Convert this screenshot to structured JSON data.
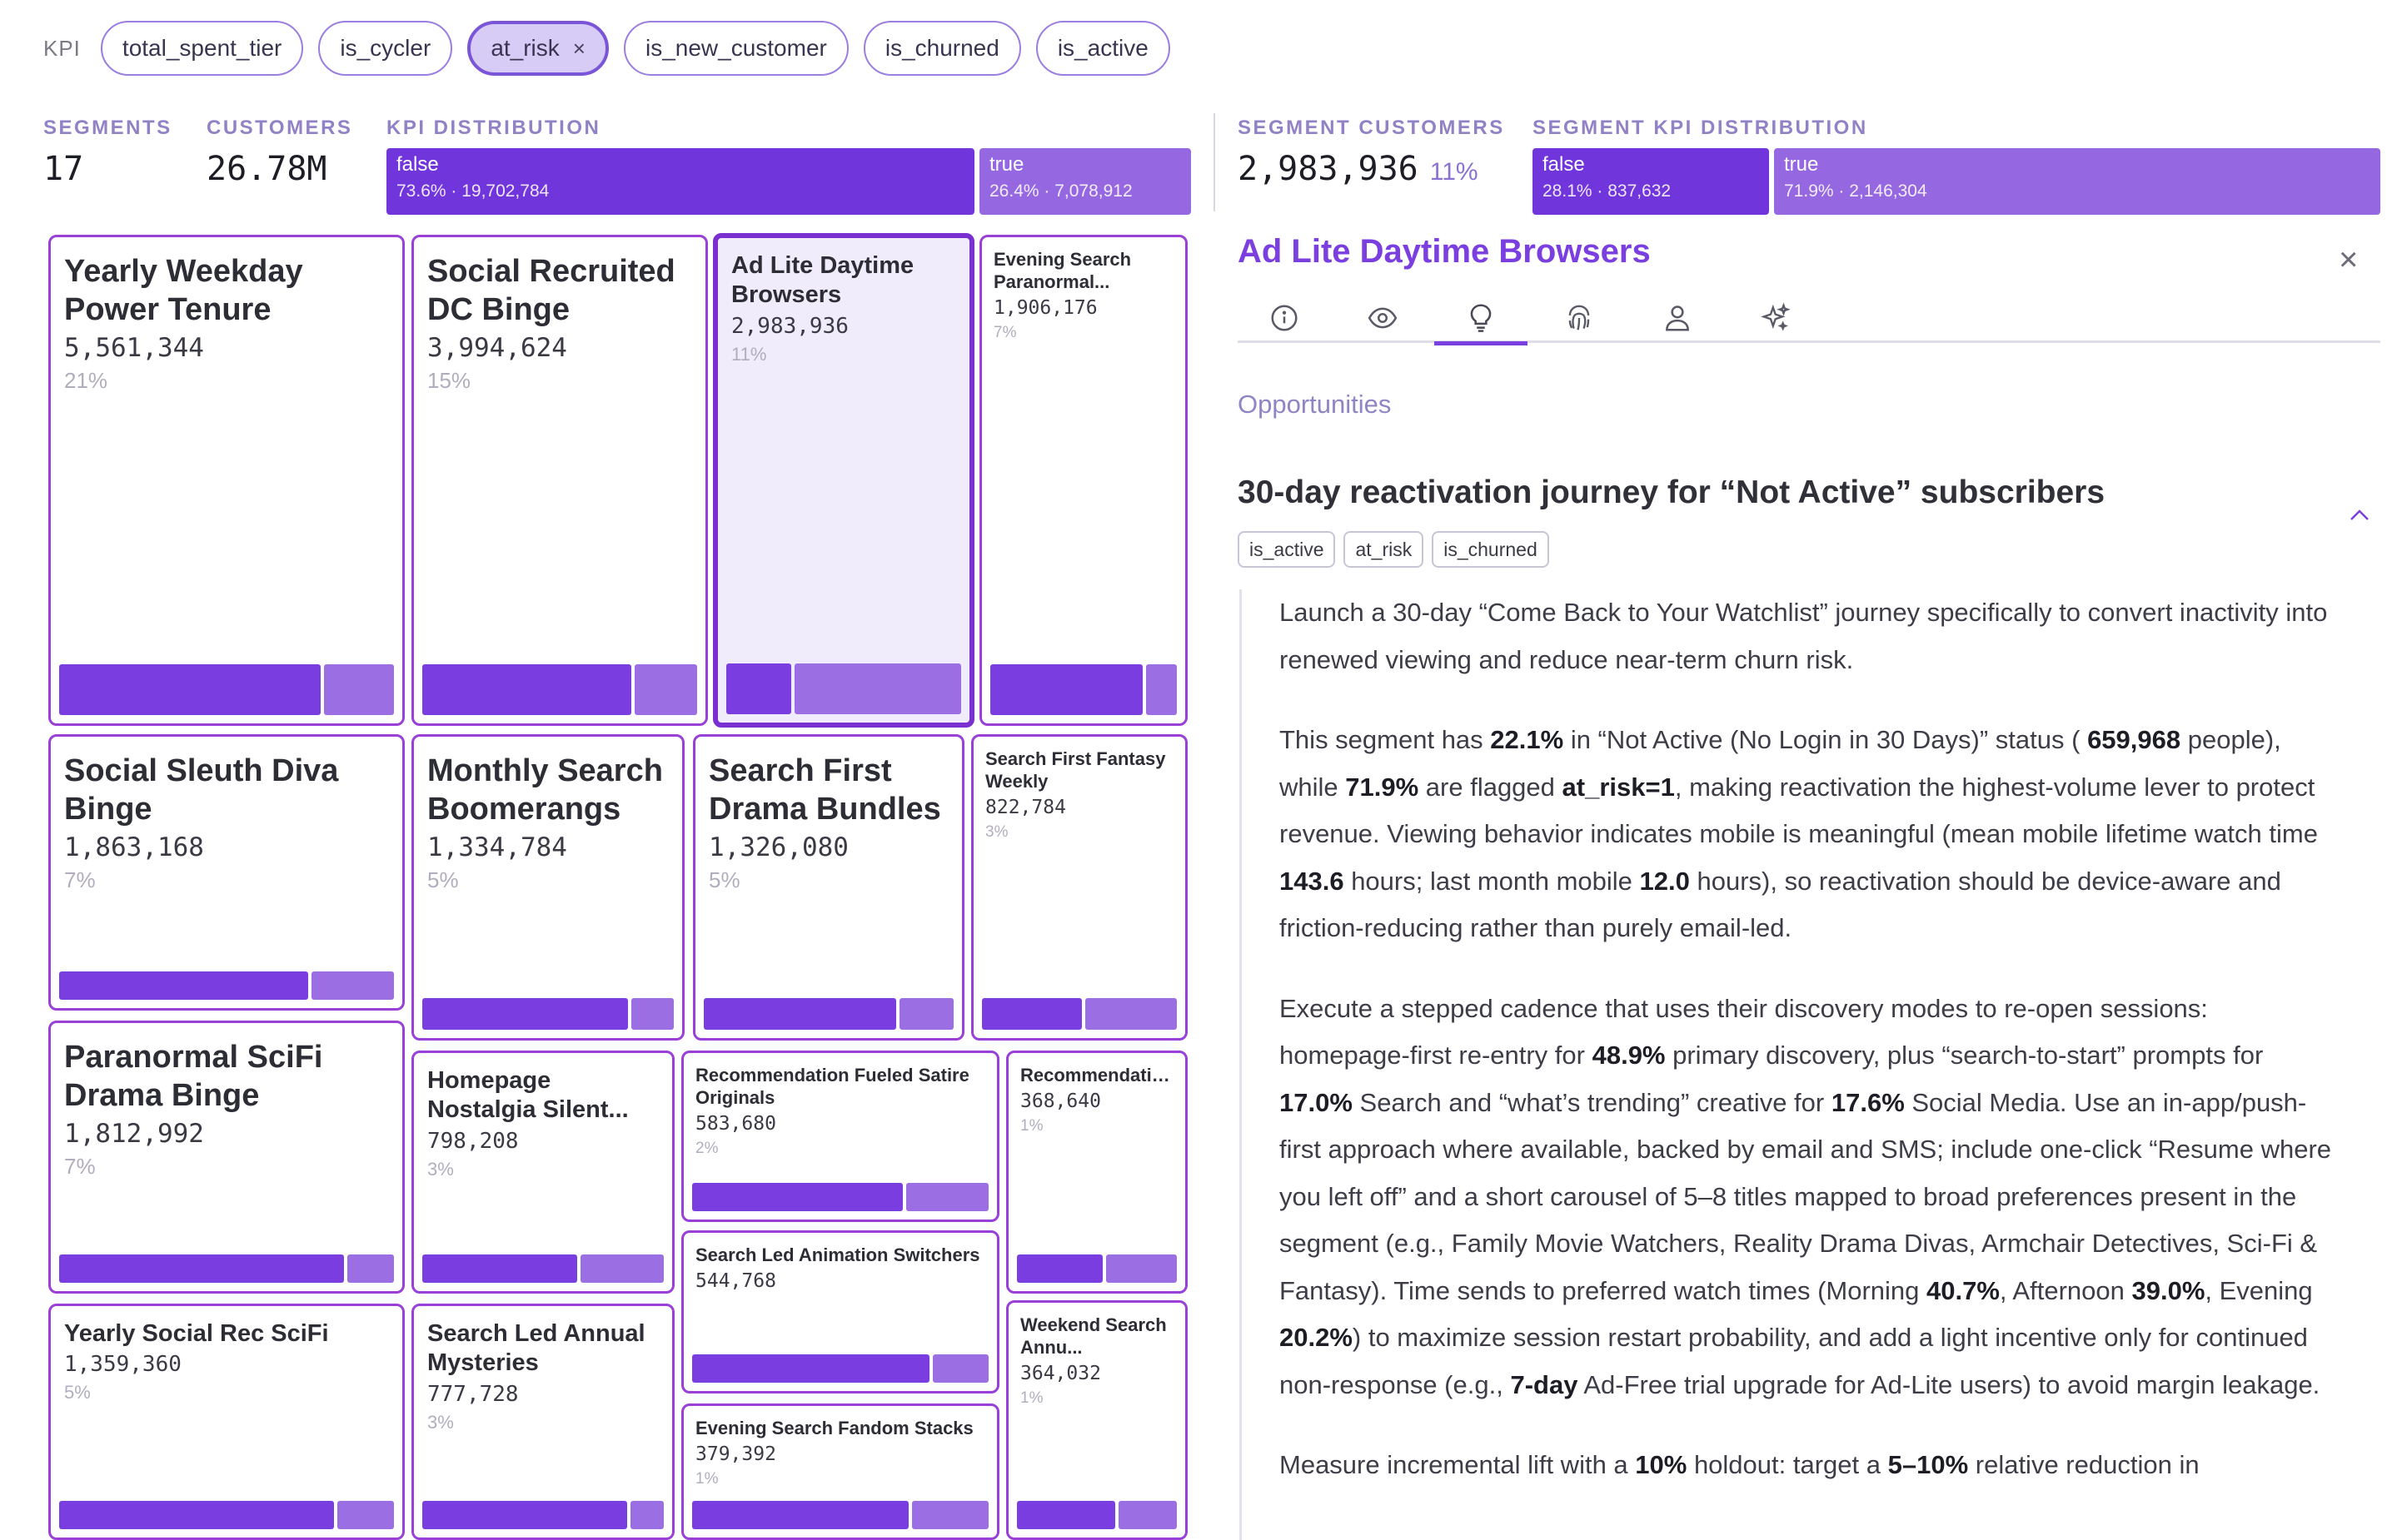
{
  "kpi": {
    "label": "KPI",
    "chips": [
      {
        "label": "total_spent_tier"
      },
      {
        "label": "is_cycler"
      },
      {
        "label": "at_risk",
        "close": "×"
      },
      {
        "label": "is_new_customer"
      },
      {
        "label": "is_churned"
      },
      {
        "label": "is_active"
      }
    ]
  },
  "summary": {
    "segments_label": "SEGMENTS",
    "segments_value": "17",
    "customers_label": "CUSTOMERS",
    "customers_value": "26.78M",
    "kpi_dist_label": "KPI DISTRIBUTION",
    "kpi_dist": [
      {
        "label": "false",
        "sub": "73.6% · 19,702,784",
        "share": 0.736
      },
      {
        "label": "true",
        "sub": "26.4% · 7,078,912",
        "share": 0.264
      }
    ],
    "seg_customers_label": "SEGMENT CUSTOMERS",
    "seg_customers_value": "2,983,936",
    "seg_customers_pct": "11%",
    "seg_kpi_dist_label": "SEGMENT KPI DISTRIBUTION",
    "seg_kpi_dist": [
      {
        "label": "false",
        "sub": "28.1% · 837,632",
        "share": 0.281
      },
      {
        "label": "true",
        "sub": "71.9% · 2,146,304",
        "share": 0.719
      }
    ]
  },
  "treemap": [
    {
      "name": "Yearly Weekday Power Tenure",
      "count": "5,561,344",
      "pct": "21%",
      "false_share": 0.79
    },
    {
      "name": "Social Recruited DC Binge",
      "count": "3,994,624",
      "pct": "15%",
      "false_share": 0.77
    },
    {
      "name": "Ad Lite Daytime Browsers",
      "count": "2,983,936",
      "pct": "11%",
      "false_share": 0.281
    },
    {
      "name": "Evening Search Paranormal...",
      "count": "1,906,176",
      "pct": "7%",
      "false_share": 0.83
    },
    {
      "name": "Social Sleuth Diva Binge",
      "count": "1,863,168",
      "pct": "7%",
      "false_share": 0.75
    },
    {
      "name": "Monthly Search Boomerangs",
      "count": "1,334,784",
      "pct": "5%",
      "false_share": 0.83
    },
    {
      "name": "Search First Drama Bundles",
      "count": "1,326,080",
      "pct": "5%",
      "false_share": 0.78
    },
    {
      "name": "Search First Fantasy Weekly",
      "count": "822,784",
      "pct": "3%",
      "false_share": 0.52
    },
    {
      "name": "Paranormal SciFi Drama Binge",
      "count": "1,812,992",
      "pct": "7%",
      "false_share": 0.86
    },
    {
      "name": "Homepage Nostalgia Silent...",
      "count": "798,208",
      "pct": "3%",
      "false_share": 0.65
    },
    {
      "name": "Recommendation Fueled Satire Originals",
      "count": "583,680",
      "pct": "2%",
      "false_share": 0.72
    },
    {
      "name": "Recommendation Led Mobile...",
      "count": "368,640",
      "pct": "1%",
      "false_share": 0.55
    },
    {
      "name": "Search Led Animation Switchers",
      "count": "544,768",
      "pct": "",
      "false_share": 0.81
    },
    {
      "name": "Yearly Social Rec SciFi",
      "count": "1,359,360",
      "pct": "5%",
      "false_share": 0.83
    },
    {
      "name": "Search Led Annual Mysteries",
      "count": "777,728",
      "pct": "3%",
      "false_share": 0.86
    },
    {
      "name": "Weekend Search Annu...",
      "count": "364,032",
      "pct": "1%",
      "false_share": 0.63
    },
    {
      "name": "Evening Search Fandom Stacks",
      "count": "379,392",
      "pct": "1%",
      "false_share": 0.74
    }
  ],
  "panel": {
    "title": "Ad Lite Daytime Browsers",
    "close": "×",
    "tabs": [
      "info-icon",
      "eye-icon",
      "lightbulb-icon",
      "fingerprint-icon",
      "user-icon",
      "sparkles-icon"
    ],
    "section_heading": "Opportunities",
    "opportunity": {
      "title": "30-day reactivation journey for “Not Active” subscribers",
      "tags": [
        "is_active",
        "at_risk",
        "is_churned"
      ],
      "p1": "Launch a 30-day “Come Back to Your Watchlist” journey specifically to convert inactivity into renewed viewing and reduce near-term churn risk.",
      "p2": {
        "a": "This segment has ",
        "b": "22.1%",
        "c": " in “Not Active (No Login in 30 Days)” status ( ",
        "d": "659,968",
        "e": " people), while ",
        "f": "71.9%",
        "g": " are flagged ",
        "h": "at_risk=1",
        "i": ", making reactivation the highest-volume lever to protect revenue. Viewing behavior indicates mobile is meaningful (mean mobile lifetime watch time ",
        "j": "143.6",
        "k": " hours; last month mobile ",
        "l": "12.0",
        "m": " hours), so reactivation should be device-aware and friction-reducing rather than purely email-led."
      },
      "p3": {
        "a": "Execute a stepped cadence that uses their discovery modes to re-open sessions: homepage-first re-entry for ",
        "b": "48.9%",
        "c": " primary discovery, plus “search-to-start” prompts for ",
        "d": "17.0%",
        "e": " Search and “what’s trending” creative for ",
        "f": "17.6%",
        "g": " Social Media. Use an in-app/push-first approach where available, backed by email and SMS; include one-click “Resume where you left off” and a short carousel of 5–8 titles mapped to broad preferences present in the segment (e.g., Family Movie Watchers, Reality Drama Divas, Armchair Detectives, Sci-Fi & Fantasy). Time sends to preferred watch times (Morning ",
        "h": "40.7%",
        "i": ", Afternoon ",
        "j": "39.0%",
        "k": ", Evening ",
        "l": "20.2%",
        "m": ") to maximize session restart probability, and add a light incentive only for continued non-response (e.g., ",
        "n": "7-day",
        "o": " Ad-Free trial upgrade for Ad-Lite users) to avoid margin leakage."
      },
      "p4": {
        "a": "Measure incremental lift with a ",
        "b": "10%",
        "c": " holdout: target a ",
        "d": "5–10%",
        "e": " relative reduction in"
      }
    }
  }
}
